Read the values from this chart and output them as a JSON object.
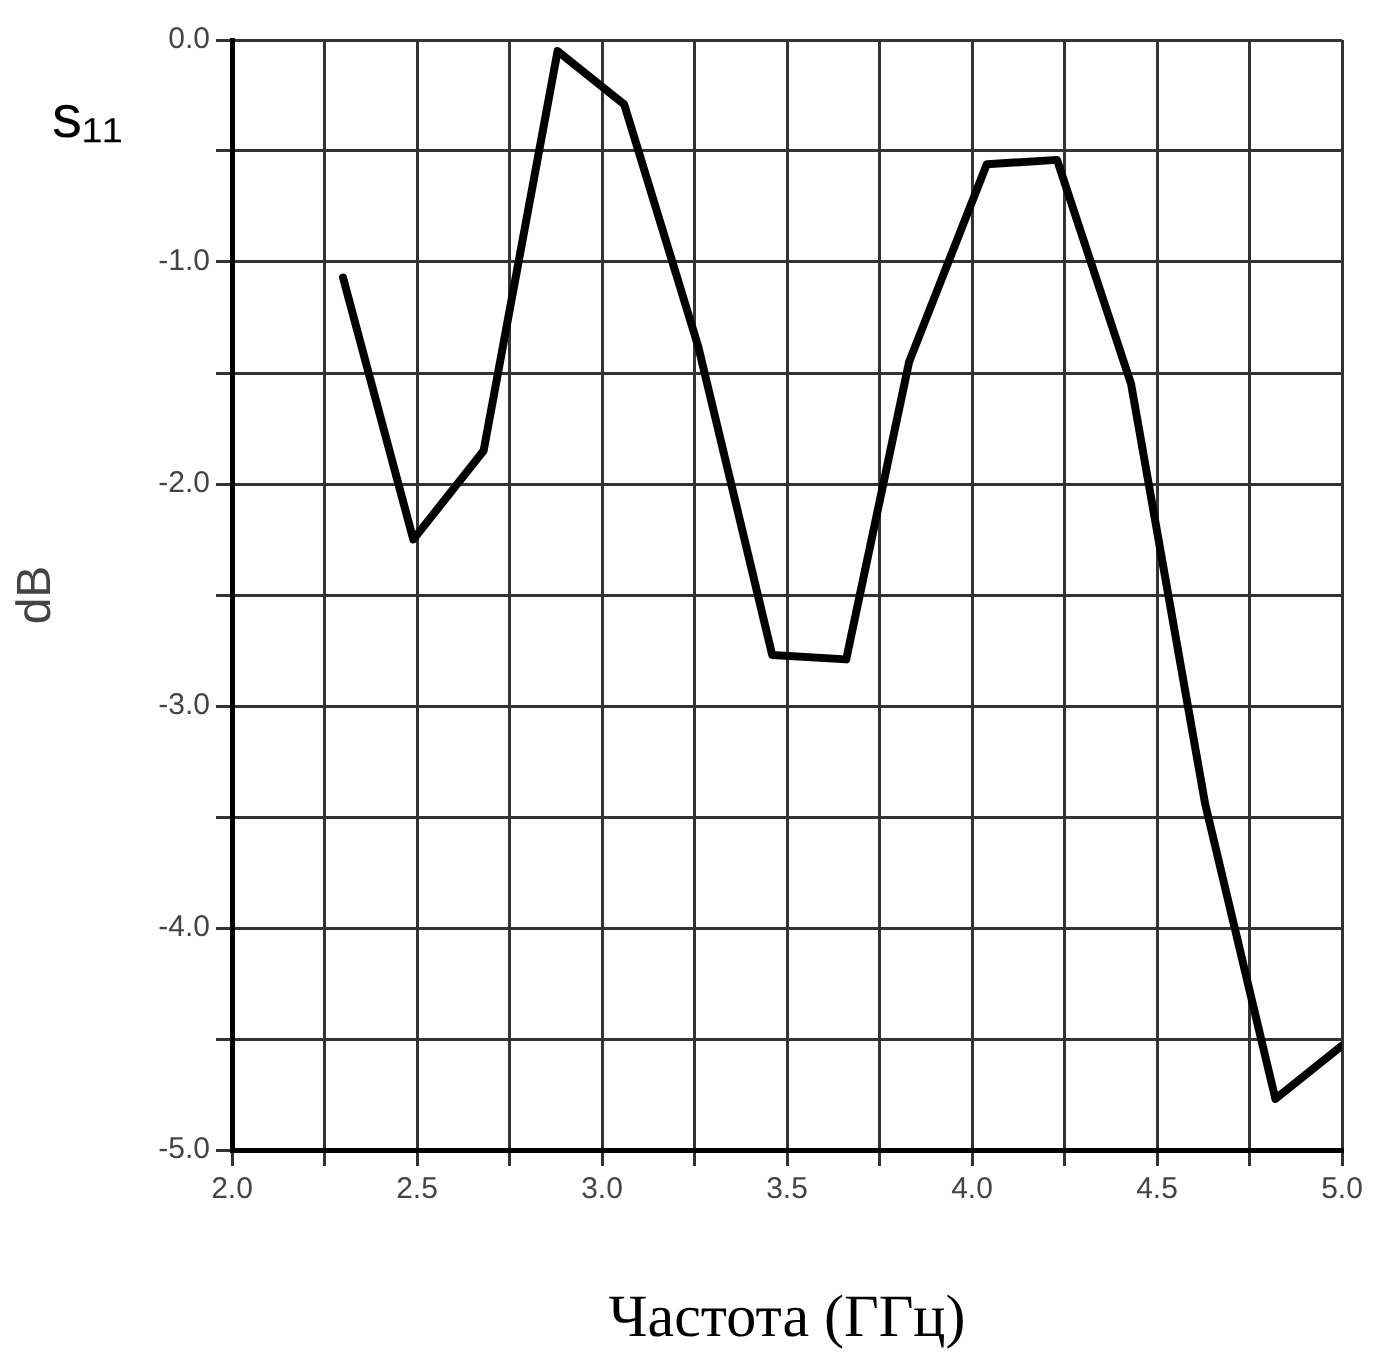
{
  "chart_data": {
    "type": "line",
    "xlabel": "Частота (ГГц)",
    "ylabel": "dB",
    "annotations": [
      "s₁₁"
    ],
    "x": [
      2.3,
      2.49,
      2.68,
      2.88,
      3.06,
      3.26,
      3.46,
      3.66,
      3.83,
      4.04,
      4.23,
      4.43,
      4.63,
      4.82,
      5.0
    ],
    "series": [
      {
        "color": "#000000",
        "values": [
          -1.07,
          -2.25,
          -1.85,
          -0.05,
          -0.29,
          -1.38,
          -2.77,
          -2.79,
          -1.45,
          -0.56,
          -0.54,
          -1.55,
          -3.44,
          -4.77,
          -4.53
        ]
      }
    ],
    "xlim": [
      2.0,
      5.0
    ],
    "xticks": [
      {
        "value": 2.0,
        "label": "2.0"
      },
      {
        "value": 2.25,
        "label": null
      },
      {
        "value": 2.5,
        "label": "2.5"
      },
      {
        "value": 2.75,
        "label": null
      },
      {
        "value": 3.0,
        "label": "3.0"
      },
      {
        "value": 3.25,
        "label": null
      },
      {
        "value": 3.5,
        "label": "3.5"
      },
      {
        "value": 3.75,
        "label": null
      },
      {
        "value": 4.0,
        "label": "4.0"
      },
      {
        "value": 4.25,
        "label": null
      },
      {
        "value": 4.5,
        "label": "4.5"
      },
      {
        "value": 4.75,
        "label": null
      },
      {
        "value": 5.0,
        "label": "5.0"
      }
    ],
    "ylim": [
      -5.0,
      0.0
    ],
    "yticks": [
      {
        "value": -5.0,
        "label": "-5.0"
      },
      {
        "value": -4.5,
        "label": null
      },
      {
        "value": -4.0,
        "label": "-4.0"
      },
      {
        "value": -3.5,
        "label": null
      },
      {
        "value": -3.0,
        "label": "-3.0"
      },
      {
        "value": -2.5,
        "label": null
      },
      {
        "value": -2.0,
        "label": "-2.0"
      },
      {
        "value": -1.5,
        "label": null
      },
      {
        "value": -1.0,
        "label": "-1.0"
      },
      {
        "value": -0.5,
        "label": null
      },
      {
        "value": 0.0,
        "label": "0.0"
      }
    ],
    "grid": true,
    "legend": false,
    "marker": "none",
    "line_style": "solid"
  }
}
